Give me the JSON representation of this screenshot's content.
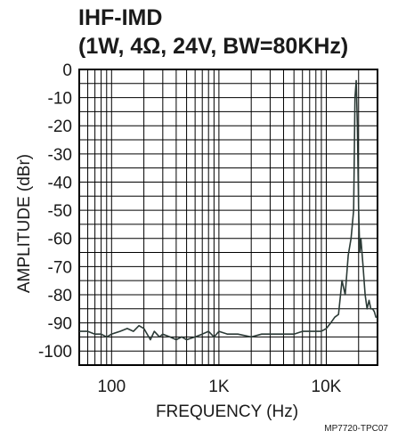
{
  "title_line1": "IHF-IMD",
  "title_line2": "(1W, 4Ω, 24V, BW=80KHz)",
  "figure_code": "MP7720-TPC07",
  "colors": {
    "trace": "#2b3a36",
    "grid": "#000000",
    "text": "#1a1a1a"
  },
  "chart_data": {
    "type": "line",
    "xlabel": "FREQUENCY (Hz)",
    "ylabel": "AMPLITUDE (dBr)",
    "x_scale": "log",
    "xlim": [
      50,
      30000
    ],
    "ylim": [
      -105,
      0
    ],
    "x_ticks": [
      {
        "value": 100,
        "label": "100"
      },
      {
        "value": 1000,
        "label": "1K"
      },
      {
        "value": 10000,
        "label": "10K"
      }
    ],
    "y_ticks": [
      0,
      -10,
      -20,
      -30,
      -40,
      -50,
      -60,
      -70,
      -80,
      -90,
      -100
    ],
    "grid": true,
    "series": [
      {
        "x": [
          50,
          60,
          70,
          80,
          90,
          100,
          120,
          140,
          160,
          180,
          200,
          230,
          250,
          280,
          300,
          350,
          400,
          450,
          500,
          600,
          700,
          800,
          900,
          1000,
          1200,
          1500,
          2000,
          2500,
          3000,
          4000,
          5000,
          6000,
          7000,
          8000,
          9000,
          10000,
          11000,
          12000,
          13000,
          14000,
          15000,
          16000,
          17000,
          18000,
          18500,
          19000,
          19500,
          20000,
          20500,
          21000,
          22000,
          23000,
          24000,
          25000,
          26000,
          27000,
          28000,
          29000,
          30000
        ],
        "y": [
          -93,
          -93,
          -94,
          -94,
          -95,
          -94,
          -93,
          -92,
          -93,
          -91,
          -92,
          -96,
          -93,
          -95,
          -94,
          -95,
          -96,
          -95,
          -96,
          -95,
          -94,
          -93,
          -95,
          -93,
          -94,
          -94,
          -95,
          -94,
          -94,
          -94,
          -94,
          -93,
          -93,
          -93,
          -93,
          -92,
          -90,
          -88,
          -87,
          -75,
          -80,
          -66,
          -60,
          -50,
          -10,
          -4,
          -20,
          -50,
          -65,
          -60,
          -70,
          -80,
          -85,
          -82,
          -85,
          -85,
          -86,
          -88,
          -88
        ]
      }
    ]
  }
}
